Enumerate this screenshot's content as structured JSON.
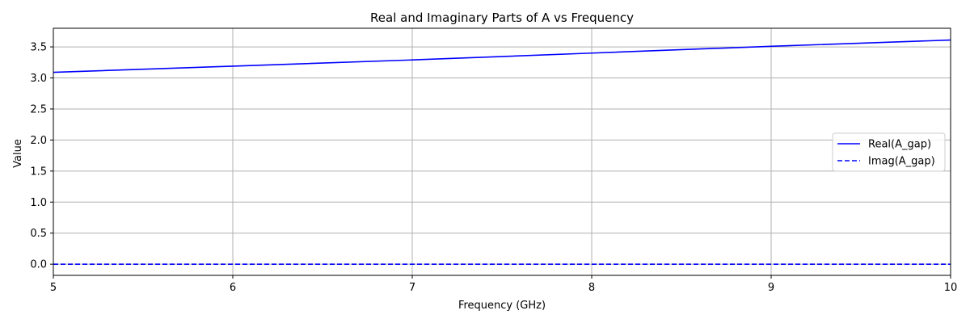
{
  "chart_data": {
    "type": "line",
    "title": "Real and Imaginary Parts of A vs Frequency",
    "xlabel": "Frequency (GHz)",
    "ylabel": "Value",
    "xlim": [
      5,
      10
    ],
    "ylim": [
      -0.18,
      3.8
    ],
    "xticks": [
      5,
      6,
      7,
      8,
      9,
      10
    ],
    "xtick_labels": [
      "5",
      "6",
      "7",
      "8",
      "9",
      "10"
    ],
    "yticks": [
      0.0,
      0.5,
      1.0,
      1.5,
      2.0,
      2.5,
      3.0,
      3.5
    ],
    "ytick_labels": [
      "0.0",
      "0.5",
      "1.0",
      "1.5",
      "2.0",
      "2.5",
      "3.0",
      "3.5"
    ],
    "grid": true,
    "legend_position": "center-right",
    "series": [
      {
        "name": "Real(A_gap)",
        "color": "#0000ff",
        "style": "solid",
        "x": [
          5,
          6,
          7,
          8,
          9,
          10
        ],
        "y": [
          3.09,
          3.19,
          3.29,
          3.4,
          3.51,
          3.61
        ]
      },
      {
        "name": "Imag(A_gap)",
        "color": "#0000ff",
        "style": "dashed",
        "x": [
          5,
          6,
          7,
          8,
          9,
          10
        ],
        "y": [
          0.0,
          0.0,
          0.0,
          0.0,
          0.0,
          0.0
        ]
      }
    ]
  }
}
